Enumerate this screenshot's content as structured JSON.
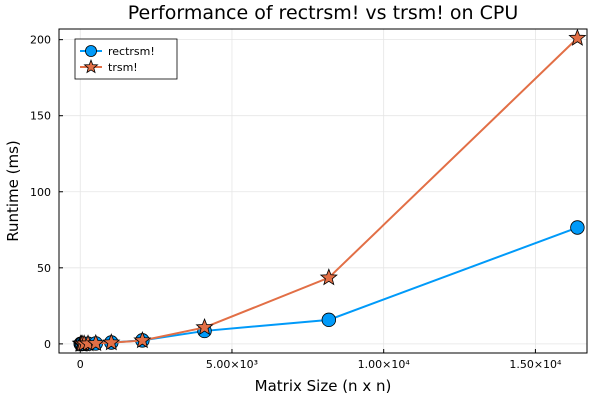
{
  "chart_data": {
    "type": "line",
    "title": "Performance of rectrsm! vs trsm! on CPU",
    "xlabel": "Matrix Size (n x n)",
    "ylabel": "Runtime (ms)",
    "xlim": [
      -700,
      16700
    ],
    "ylim": [
      -6,
      207
    ],
    "grid": true,
    "legend_position": "top-left",
    "x_ticks": [
      {
        "value": 0,
        "label": "0"
      },
      {
        "value": 5000,
        "label": "5.00×10³"
      },
      {
        "value": 10000,
        "label": "1.00×10⁴"
      },
      {
        "value": 15000,
        "label": "1.50×10⁴"
      }
    ],
    "y_ticks": [
      {
        "value": 0,
        "label": "0"
      },
      {
        "value": 50,
        "label": "50"
      },
      {
        "value": 100,
        "label": "100"
      },
      {
        "value": 150,
        "label": "150"
      },
      {
        "value": 200,
        "label": "200"
      }
    ],
    "series": [
      {
        "name": "rectrsm!",
        "color": "#009af9",
        "marker": "circle",
        "x": [
          16,
          32,
          64,
          128,
          256,
          512,
          1024,
          2048,
          4096,
          8192,
          16384
        ],
        "y": [
          0.0,
          0.0,
          0.0,
          0.05,
          0.1,
          0.3,
          0.9,
          2.3,
          8.5,
          15.8,
          76.5
        ]
      },
      {
        "name": "trsm!",
        "color": "#e26f46",
        "marker": "star",
        "x": [
          16,
          32,
          64,
          128,
          256,
          512,
          1024,
          2048,
          4096,
          8192,
          16384
        ],
        "y": [
          0.0,
          0.0,
          0.0,
          0.05,
          0.1,
          0.3,
          0.8,
          2.2,
          10.8,
          43.5,
          201.0
        ]
      }
    ]
  }
}
